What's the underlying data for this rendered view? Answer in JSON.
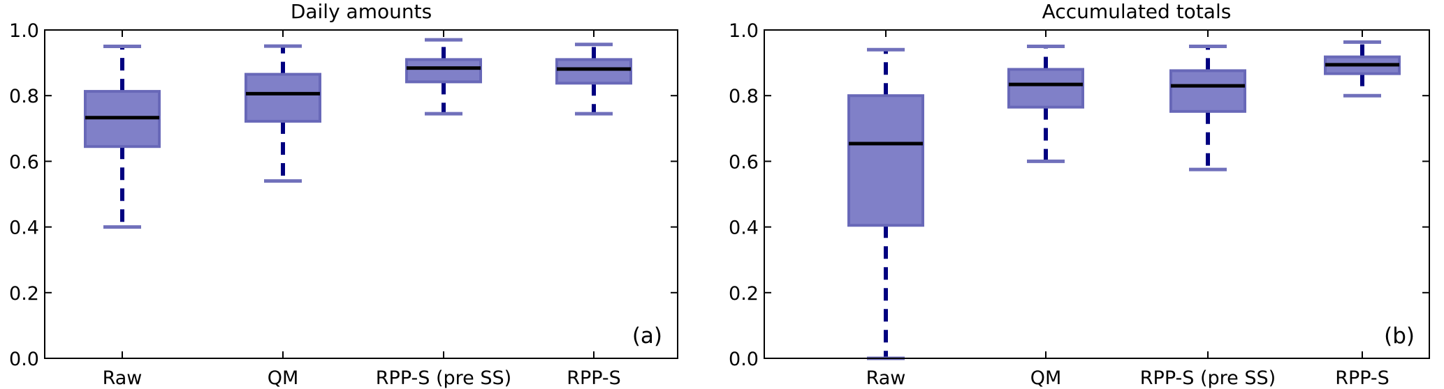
{
  "chart_data": [
    {
      "type": "box",
      "title": "Daily amounts",
      "panel_label": "(a)",
      "categories": [
        "Raw",
        "QM",
        "RPP-S (pre SS)",
        "RPP-S"
      ],
      "ylim": [
        0,
        1
      ],
      "yticks": [
        "0.0",
        "0.2",
        "0.4",
        "0.6",
        "0.8",
        "1.0"
      ],
      "grid": false,
      "boxes": [
        {
          "whisker_low": 0.4,
          "q1": 0.645,
          "median": 0.733,
          "q3": 0.813,
          "whisker_high": 0.95
        },
        {
          "whisker_low": 0.54,
          "q1": 0.722,
          "median": 0.806,
          "q3": 0.865,
          "whisker_high": 0.951
        },
        {
          "whisker_low": 0.745,
          "q1": 0.842,
          "median": 0.884,
          "q3": 0.91,
          "whisker_high": 0.97
        },
        {
          "whisker_low": 0.745,
          "q1": 0.838,
          "median": 0.881,
          "q3": 0.91,
          "whisker_high": 0.956
        }
      ]
    },
    {
      "type": "box",
      "title": "Accumulated totals",
      "panel_label": "(b)",
      "categories": [
        "Raw",
        "QM",
        "RPP-S (pre SS)",
        "RPP-S"
      ],
      "ylim": [
        0,
        1
      ],
      "yticks": [
        "0.0",
        "0.2",
        "0.4",
        "0.6",
        "0.8",
        "1.0"
      ],
      "grid": false,
      "boxes": [
        {
          "whisker_low": 0.0,
          "q1": 0.405,
          "median": 0.654,
          "q3": 0.8,
          "whisker_high": 0.94
        },
        {
          "whisker_low": 0.6,
          "q1": 0.765,
          "median": 0.834,
          "q3": 0.88,
          "whisker_high": 0.95
        },
        {
          "whisker_low": 0.575,
          "q1": 0.752,
          "median": 0.83,
          "q3": 0.876,
          "whisker_high": 0.95
        },
        {
          "whisker_low": 0.8,
          "q1": 0.867,
          "median": 0.894,
          "q3": 0.918,
          "whisker_high": 0.963
        }
      ]
    }
  ],
  "colors": {
    "box_fill": "#8080c8",
    "box_edge": "#6868b8",
    "whisker": "#000080",
    "cap": "#7070bb",
    "median": "#000000"
  }
}
